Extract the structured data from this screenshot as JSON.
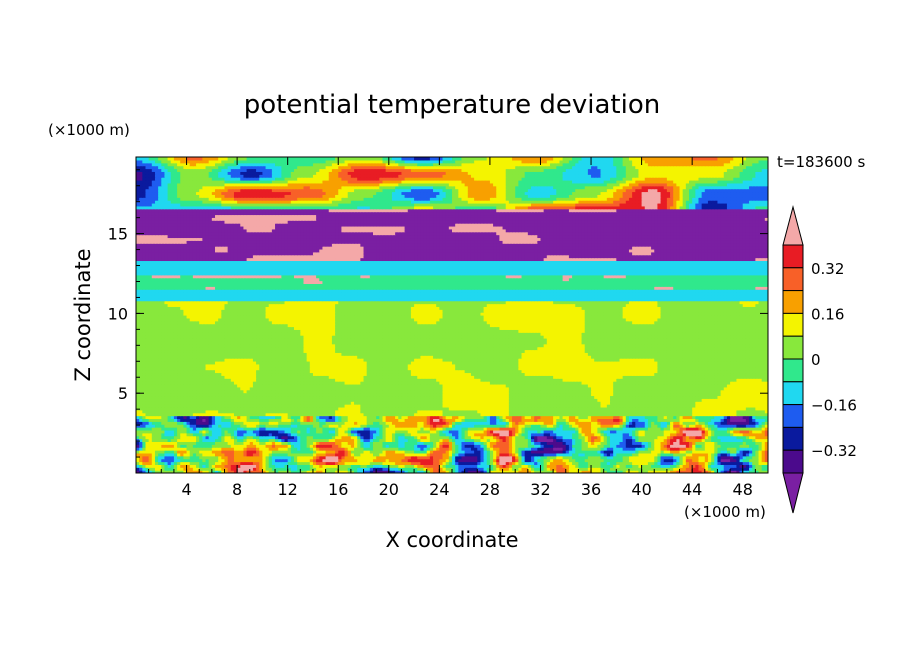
{
  "chart_data": {
    "type": "heatmap",
    "title": "potential temperature deviation",
    "xlabel": "X coordinate",
    "ylabel": "Z coordinate",
    "x_unit": "(×1000 m)",
    "y_unit": "(×1000 m)",
    "time_label": "t=183600 s",
    "xlim": [
      0,
      50
    ],
    "ylim": [
      0,
      19.8
    ],
    "x_ticks": [
      4,
      8,
      12,
      16,
      20,
      24,
      28,
      32,
      36,
      40,
      44,
      48
    ],
    "y_ticks": [
      5,
      10,
      15
    ],
    "colorbar": {
      "levels": [
        -0.4,
        -0.32,
        -0.24,
        -0.16,
        -0.08,
        0,
        0.08,
        0.16,
        0.24,
        0.32,
        0.4
      ],
      "tick_labels": [
        "0.32",
        "0.16",
        "0",
        "−0.16",
        "−0.32"
      ],
      "tick_values": [
        0.32,
        0.16,
        0,
        -0.16,
        -0.32
      ],
      "colors": [
        "#7a1fa2",
        "#4b0a8c",
        "#0a1a9e",
        "#1e5cf0",
        "#20d8f0",
        "#30e88c",
        "#88e83c",
        "#f4f400",
        "#f8a000",
        "#f86028",
        "#e81c24",
        "#f4a8a8"
      ]
    },
    "bands": [
      {
        "z": [
          0,
          3.6
        ],
        "pattern": "convective mixed, ±0.4"
      },
      {
        "z": [
          3.6,
          10.8
        ],
        "value": 0.02
      },
      {
        "z": [
          10.8,
          11.5
        ],
        "value": -0.12
      },
      {
        "z": [
          11.5,
          12.5
        ],
        "value": -0.05
      },
      {
        "z": [
          12.5,
          13.4
        ],
        "value": -0.15
      },
      {
        "z": [
          13.4,
          16.5
        ],
        "value": -0.4
      },
      {
        "z": [
          16.5,
          19.8
        ],
        "value": 0.05
      }
    ]
  }
}
